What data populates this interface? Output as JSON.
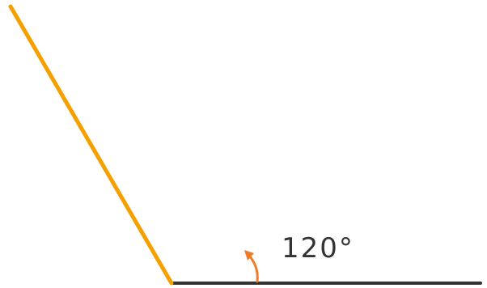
{
  "diagram": {
    "angle_label": "120°",
    "angle_degrees": 120,
    "colors": {
      "rotating_ray": "#f6a000",
      "base_ray": "#333333",
      "arc_arrow": "#f07b2a",
      "label": "#333333",
      "background": "#ffffff"
    }
  }
}
